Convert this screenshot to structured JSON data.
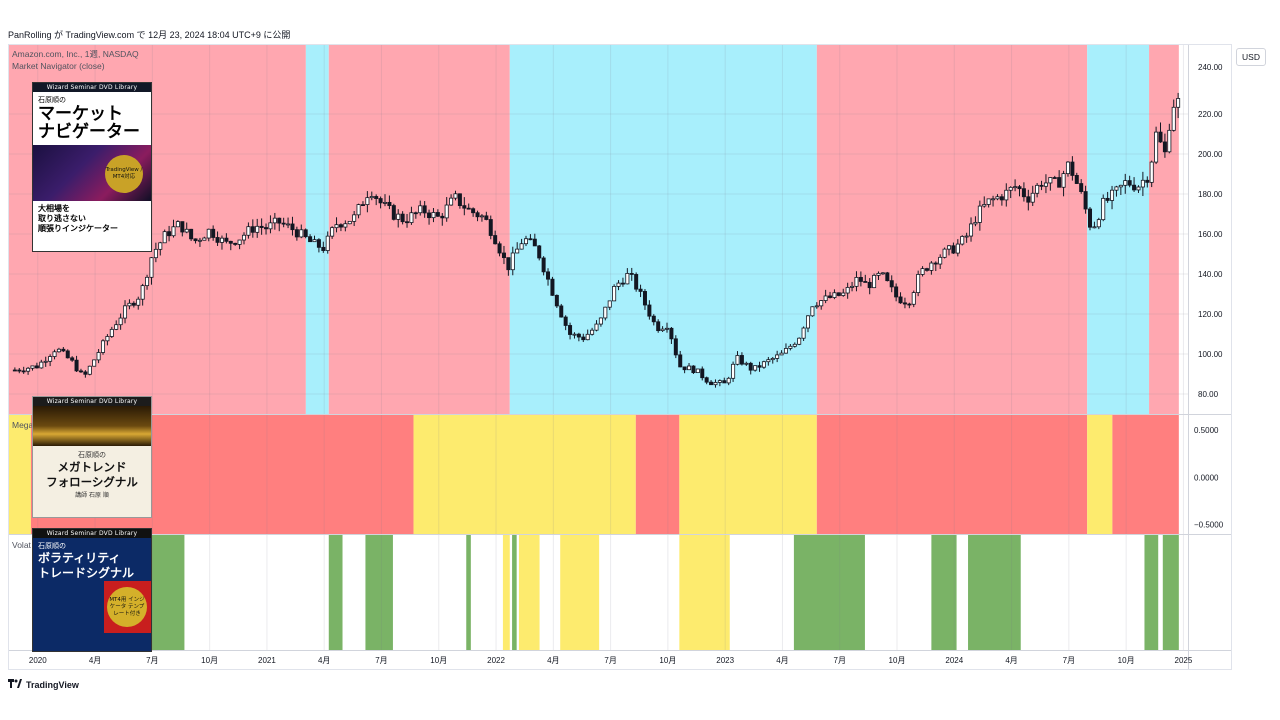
{
  "header": {
    "publish_text": "PanRolling が TradingView.com で 12月 23, 2024 18:04 UTC+9 に公開"
  },
  "legend": {
    "symbol": "Amazon.com, Inc., 1週, NASDAQ",
    "indicator1": "Market Navigator (close)",
    "indicator2": "Mega",
    "indicator3": "Volat"
  },
  "currency_button": "USD",
  "footer_logo": "TradingView",
  "price_axis": {
    "ticks": [
      80,
      100,
      120,
      140,
      160,
      180,
      200,
      220
    ],
    "labels": [
      "80.00",
      "100.00",
      "120.00",
      "140.00",
      "160.00",
      "180.00",
      "200.00",
      "220.00"
    ],
    "top_partial_label": "240.00",
    "range": [
      70,
      255
    ]
  },
  "osc_axis": {
    "labels": [
      "0.5000",
      "0.0000",
      "−0.5000"
    ],
    "values": [
      0.5,
      0,
      -0.5
    ],
    "range": [
      -0.6,
      0.66
    ]
  },
  "time_axis": {
    "labels": [
      "2020",
      "4月",
      "7月",
      "10月",
      "2021",
      "4月",
      "7月",
      "10月",
      "2022",
      "4月",
      "7月",
      "10月",
      "2023",
      "4月",
      "7月",
      "10月",
      "2024",
      "4月",
      "7月",
      "10月",
      "2025"
    ],
    "positions": [
      0.0,
      0.25,
      0.5,
      0.75,
      1.0,
      1.25,
      1.5,
      1.75,
      2.0,
      2.25,
      2.5,
      2.75,
      3.0,
      3.25,
      3.5,
      3.75,
      4.0,
      4.25,
      4.5,
      4.75,
      5.0
    ],
    "range": [
      -0.13,
      5.02
    ]
  },
  "colors": {
    "red_zone": "#ffa7b0",
    "blue_zone": "#a8effc",
    "mega_red": "#ff7f7f",
    "mega_yellow": "#fdeb6e",
    "vol_green": "#7ab366",
    "vol_yellow": "#fdeb6e",
    "up": "#ffffff",
    "down": "#131722"
  },
  "chart_data": {
    "type": "candlestick",
    "title": "Amazon.com, Inc., 1週, NASDAQ",
    "ylabel": "USD",
    "ylim": [
      70,
      255
    ],
    "close": [
      {
        "t": -0.1,
        "c": 92
      },
      {
        "t": 0.0,
        "c": 94
      },
      {
        "t": 0.08,
        "c": 103
      },
      {
        "t": 0.15,
        "c": 96
      },
      {
        "t": 0.2,
        "c": 88
      },
      {
        "t": 0.25,
        "c": 98
      },
      {
        "t": 0.32,
        "c": 112
      },
      {
        "t": 0.38,
        "c": 122
      },
      {
        "t": 0.45,
        "c": 130
      },
      {
        "t": 0.5,
        "c": 150
      },
      {
        "t": 0.56,
        "c": 160
      },
      {
        "t": 0.62,
        "c": 165
      },
      {
        "t": 0.68,
        "c": 156
      },
      {
        "t": 0.75,
        "c": 162
      },
      {
        "t": 0.82,
        "c": 155
      },
      {
        "t": 0.88,
        "c": 158
      },
      {
        "t": 0.95,
        "c": 164
      },
      {
        "t": 1.0,
        "c": 163
      },
      {
        "t": 1.05,
        "c": 166
      },
      {
        "t": 1.12,
        "c": 162
      },
      {
        "t": 1.2,
        "c": 155
      },
      {
        "t": 1.25,
        "c": 153
      },
      {
        "t": 1.3,
        "c": 165
      },
      {
        "t": 1.38,
        "c": 168
      },
      {
        "t": 1.45,
        "c": 183
      },
      {
        "t": 1.5,
        "c": 175
      },
      {
        "t": 1.55,
        "c": 170
      },
      {
        "t": 1.6,
        "c": 167
      },
      {
        "t": 1.68,
        "c": 172
      },
      {
        "t": 1.75,
        "c": 168
      },
      {
        "t": 1.82,
        "c": 178
      },
      {
        "t": 1.88,
        "c": 172
      },
      {
        "t": 1.95,
        "c": 168
      },
      {
        "t": 2.0,
        "c": 157
      },
      {
        "t": 2.05,
        "c": 143
      },
      {
        "t": 2.12,
        "c": 158
      },
      {
        "t": 2.18,
        "c": 152
      },
      {
        "t": 2.25,
        "c": 130
      },
      {
        "t": 2.32,
        "c": 110
      },
      {
        "t": 2.38,
        "c": 108
      },
      {
        "t": 2.45,
        "c": 115
      },
      {
        "t": 2.52,
        "c": 134
      },
      {
        "t": 2.58,
        "c": 140
      },
      {
        "t": 2.62,
        "c": 132
      },
      {
        "t": 2.7,
        "c": 113
      },
      {
        "t": 2.75,
        "c": 115
      },
      {
        "t": 2.8,
        "c": 94
      },
      {
        "t": 2.87,
        "c": 92
      },
      {
        "t": 2.93,
        "c": 86
      },
      {
        "t": 3.0,
        "c": 85
      },
      {
        "t": 3.05,
        "c": 98
      },
      {
        "t": 3.12,
        "c": 92
      },
      {
        "t": 3.18,
        "c": 96
      },
      {
        "t": 3.25,
        "c": 100
      },
      {
        "t": 3.32,
        "c": 108
      },
      {
        "t": 3.38,
        "c": 125
      },
      {
        "t": 3.45,
        "c": 128
      },
      {
        "t": 3.52,
        "c": 130
      },
      {
        "t": 3.58,
        "c": 138
      },
      {
        "t": 3.62,
        "c": 134
      },
      {
        "t": 3.68,
        "c": 140
      },
      {
        "t": 3.75,
        "c": 128
      },
      {
        "t": 3.8,
        "c": 126
      },
      {
        "t": 3.85,
        "c": 140
      },
      {
        "t": 3.9,
        "c": 146
      },
      {
        "t": 3.95,
        "c": 150
      },
      {
        "t": 4.0,
        "c": 153
      },
      {
        "t": 4.05,
        "c": 158
      },
      {
        "t": 4.1,
        "c": 170
      },
      {
        "t": 4.15,
        "c": 176
      },
      {
        "t": 4.22,
        "c": 180
      },
      {
        "t": 4.27,
        "c": 184
      },
      {
        "t": 4.32,
        "c": 178
      },
      {
        "t": 4.38,
        "c": 186
      },
      {
        "t": 4.45,
        "c": 185
      },
      {
        "t": 4.5,
        "c": 195
      },
      {
        "t": 4.55,
        "c": 181
      },
      {
        "t": 4.6,
        "c": 162
      },
      {
        "t": 4.65,
        "c": 175
      },
      {
        "t": 4.7,
        "c": 180
      },
      {
        "t": 4.75,
        "c": 186
      },
      {
        "t": 4.8,
        "c": 184
      },
      {
        "t": 4.85,
        "c": 190
      },
      {
        "t": 4.88,
        "c": 210
      },
      {
        "t": 4.92,
        "c": 200
      },
      {
        "t": 4.95,
        "c": 225
      },
      {
        "t": 4.98,
        "c": 226
      }
    ]
  },
  "market_navigator_zones": [
    {
      "from": -0.13,
      "to": 1.17,
      "zone": "red"
    },
    {
      "from": 1.17,
      "to": 1.27,
      "zone": "blue"
    },
    {
      "from": 1.27,
      "to": 2.06,
      "zone": "red"
    },
    {
      "from": 2.06,
      "to": 3.4,
      "zone": "blue"
    },
    {
      "from": 3.4,
      "to": 4.58,
      "zone": "red"
    },
    {
      "from": 4.58,
      "to": 4.85,
      "zone": "blue"
    },
    {
      "from": 4.85,
      "to": 4.98,
      "zone": "red"
    }
  ],
  "mega_trend_zones": [
    {
      "from": -0.13,
      "to": -0.03,
      "zone": "yellow"
    },
    {
      "from": -0.03,
      "to": 1.64,
      "zone": "red"
    },
    {
      "from": 1.64,
      "to": 2.61,
      "zone": "yellow"
    },
    {
      "from": 2.61,
      "to": 2.8,
      "zone": "red"
    },
    {
      "from": 2.8,
      "to": 3.4,
      "zone": "yellow"
    },
    {
      "from": 3.4,
      "to": 4.58,
      "zone": "red"
    },
    {
      "from": 4.58,
      "to": 4.69,
      "zone": "yellow"
    },
    {
      "from": 4.69,
      "to": 4.98,
      "zone": "red"
    }
  ],
  "volatility_zones": [
    {
      "from": 0.47,
      "to": 0.64,
      "zone": "green"
    },
    {
      "from": 1.27,
      "to": 1.33,
      "zone": "green"
    },
    {
      "from": 1.43,
      "to": 1.55,
      "zone": "green"
    },
    {
      "from": 1.87,
      "to": 1.89,
      "zone": "green"
    },
    {
      "from": 2.03,
      "to": 2.06,
      "zone": "yellow"
    },
    {
      "from": 2.07,
      "to": 2.09,
      "zone": "green"
    },
    {
      "from": 2.1,
      "to": 2.19,
      "zone": "yellow"
    },
    {
      "from": 2.28,
      "to": 2.45,
      "zone": "yellow"
    },
    {
      "from": 2.8,
      "to": 3.02,
      "zone": "yellow"
    },
    {
      "from": 3.3,
      "to": 3.61,
      "zone": "green"
    },
    {
      "from": 3.9,
      "to": 4.01,
      "zone": "green"
    },
    {
      "from": 4.06,
      "to": 4.29,
      "zone": "green"
    },
    {
      "from": 4.83,
      "to": 4.89,
      "zone": "green"
    },
    {
      "from": 4.91,
      "to": 4.98,
      "zone": "green"
    }
  ],
  "books": {
    "book1": {
      "series": "Wizard Seminar DVD Library",
      "author": "石原順の",
      "title_line1": "マーケット",
      "title_line2": "ナビゲーター",
      "badge": "TradingView / MT4対応",
      "sub1": "大相場を",
      "sub2": "取り逃さない",
      "sub3": "順張りインジケーター"
    },
    "book2": {
      "series": "Wizard Seminar DVD Library",
      "author": "石原順の",
      "title_line1": "メガトレンド",
      "title_line2": "フォローシグナル",
      "foot": "講師 石原 順"
    },
    "book3": {
      "series": "Wizard Seminar DVD Library",
      "author": "石原順の",
      "title_line1": "ボラティリティ",
      "title_line2": "トレードシグナル",
      "badge": "MT4用 インジケータ テンプレート付き"
    }
  }
}
